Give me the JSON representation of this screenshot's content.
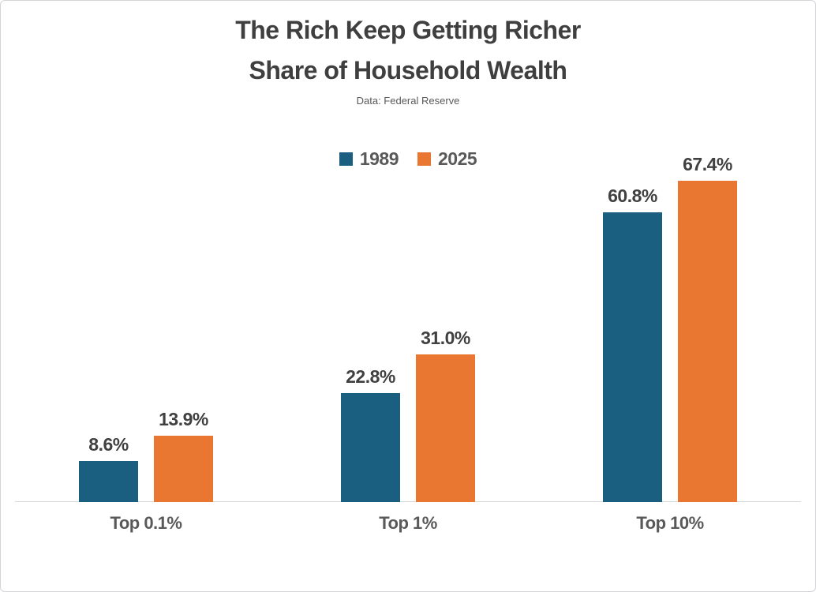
{
  "header": {
    "title_line1": "The Rich Keep Getting Richer",
    "title_line2": "Share of Household Wealth",
    "subtitle": "Data: Federal Reserve"
  },
  "chart_data": {
    "type": "bar",
    "title": "The Rich Keep Getting Richer",
    "subtitle_title": "Share of Household Wealth",
    "source_note": "Data: Federal Reserve",
    "categories": [
      "Top 0.1%",
      "Top 1%",
      "Top 10%"
    ],
    "series": [
      {
        "name": "1989",
        "color": "#1A5F80",
        "values": [
          8.6,
          22.8,
          60.8
        ],
        "labels": [
          "8.6%",
          "22.8%",
          "60.8%"
        ]
      },
      {
        "name": "2025",
        "color": "#E97631",
        "values": [
          13.9,
          31.0,
          67.4
        ],
        "labels": [
          "13.9%",
          "31.0%",
          "67.4%"
        ]
      }
    ],
    "xlabel": "",
    "ylabel": "",
    "ylim": [
      0,
      70
    ],
    "grid": false,
    "y_axis_visible": false,
    "legend_position": "top-center",
    "value_labels": true
  },
  "colors": {
    "series_1989": "#1A5F80",
    "series_2025": "#E97631",
    "title_text": "#3F3F3F",
    "value_label_text": "#404040",
    "category_text": "#595959",
    "axis_line": "#D9D9D9",
    "frame_border": "#D4D4D8",
    "background": "#FFFFFF"
  }
}
